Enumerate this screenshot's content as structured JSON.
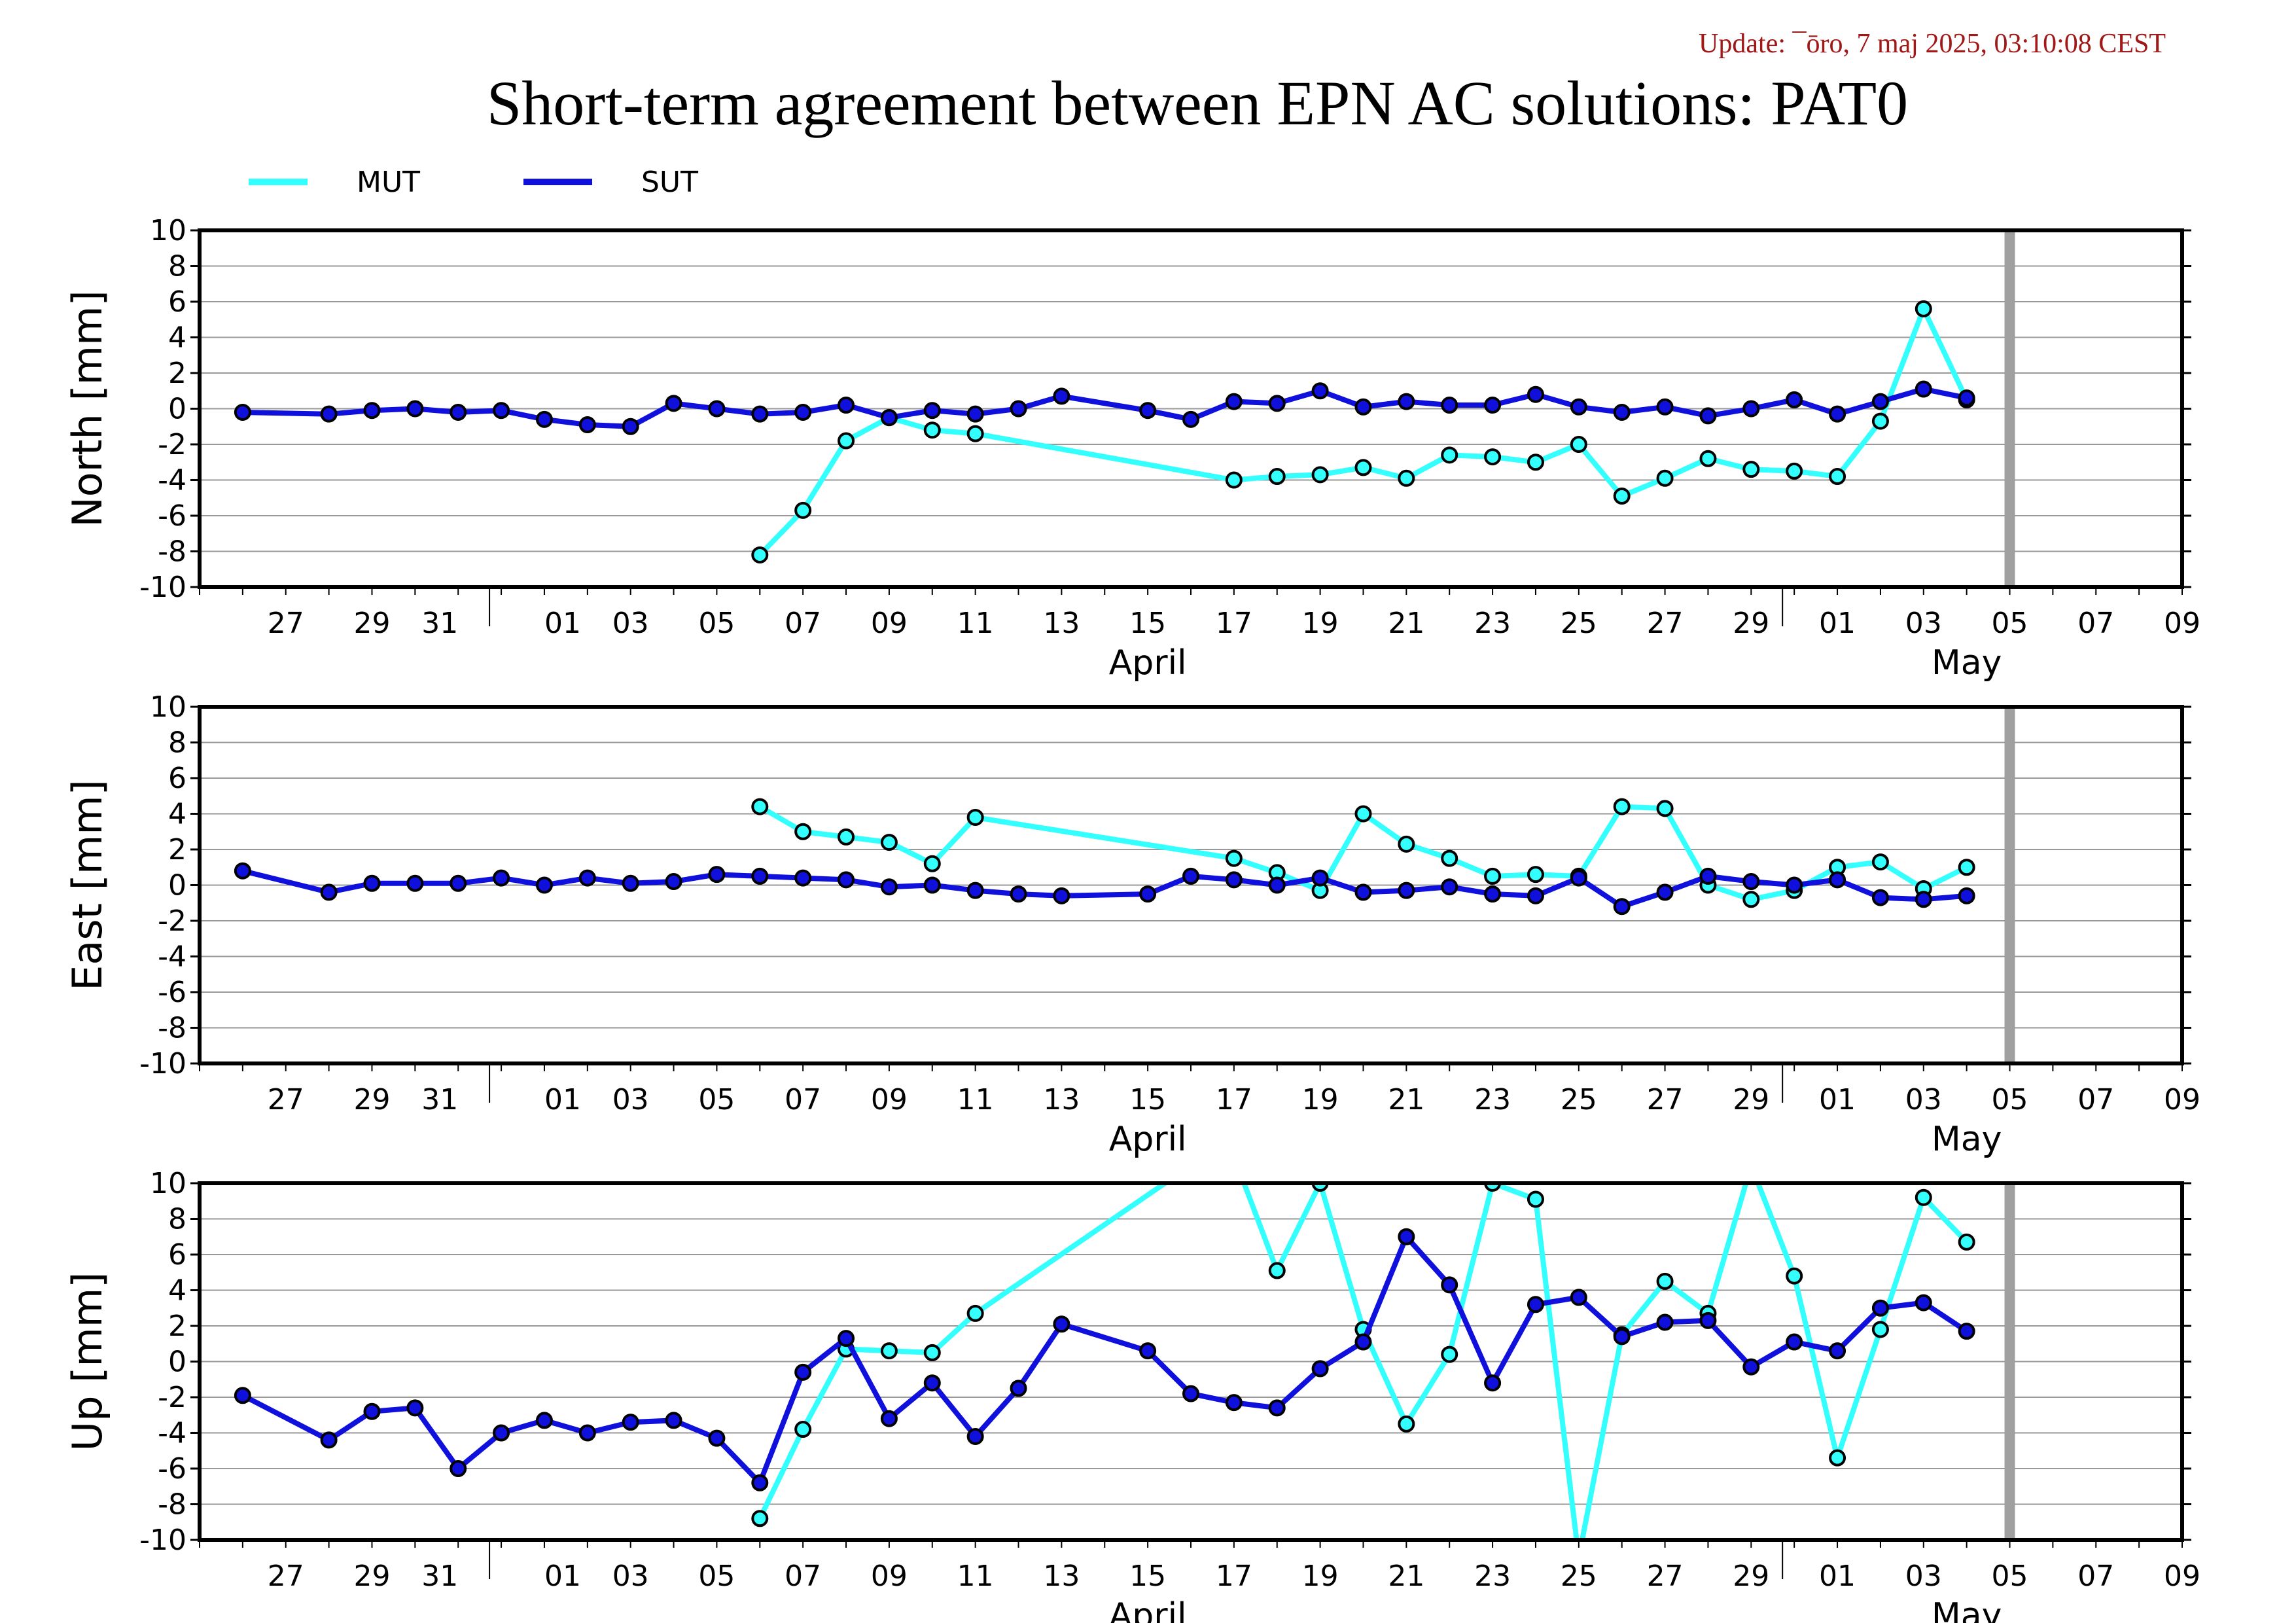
{
  "header": {
    "update": "Update: ¯ōro, 7 maj 2025, 03:10:08 CEST",
    "title": "Short-term agreement between EPN AC solutions: PAT0"
  },
  "legend": [
    {
      "name": "MUT",
      "color": "#33ffff"
    },
    {
      "name": "SUT",
      "color": "#1010dd"
    }
  ],
  "colors": {
    "MUT": "#33ffff",
    "SUT": "#1010dd",
    "grid": "#999999",
    "today_marker": "#a0a0a0"
  },
  "chart_data": [
    {
      "type": "line",
      "ylabel": "North [mm]",
      "ylim": [
        -10,
        10
      ],
      "yticks": [
        10,
        8,
        6,
        4,
        2,
        0,
        -2,
        -4,
        -6,
        -8,
        -10
      ],
      "xlim": [
        "2025-03-25",
        "2025-05-10"
      ],
      "x_tick_labels": [
        "27",
        "29",
        "31",
        "01",
        "03",
        "05",
        "07",
        "09",
        "11",
        "13",
        "15",
        "17",
        "19",
        "21",
        "23",
        "25",
        "27",
        "29",
        "01",
        "03",
        "05",
        "07",
        "09"
      ],
      "month_labels": [
        "April",
        "May"
      ],
      "grid": true,
      "today_marker": "2025-05-06",
      "series": [
        {
          "name": "MUT",
          "points": [
            [
              "2025-04-07",
              -8.2
            ],
            [
              "2025-04-08",
              -5.7
            ],
            [
              "2025-04-09",
              -1.8
            ],
            [
              "2025-04-10",
              -0.5
            ],
            [
              "2025-04-11",
              -1.2
            ],
            [
              "2025-04-12",
              -1.4
            ],
            [
              "2025-04-18",
              -4.0
            ],
            [
              "2025-04-19",
              -3.8
            ],
            [
              "2025-04-20",
              -3.7
            ],
            [
              "2025-04-21",
              -3.3
            ],
            [
              "2025-04-22",
              -3.9
            ],
            [
              "2025-04-23",
              -2.6
            ],
            [
              "2025-04-24",
              -2.7
            ],
            [
              "2025-04-25",
              -3.0
            ],
            [
              "2025-04-26",
              -2.0
            ],
            [
              "2025-04-27",
              -4.9
            ],
            [
              "2025-04-28",
              -3.9
            ],
            [
              "2025-04-29",
              -2.8
            ],
            [
              "2025-04-30",
              -3.4
            ],
            [
              "2025-05-01",
              -3.5
            ],
            [
              "2025-05-02",
              -3.8
            ],
            [
              "2025-05-03",
              -0.7
            ],
            [
              "2025-05-04",
              5.6
            ],
            [
              "2025-05-05",
              0.5
            ]
          ]
        },
        {
          "name": "SUT",
          "points": [
            [
              "2025-03-26",
              -0.2
            ],
            [
              "2025-03-28",
              -0.3
            ],
            [
              "2025-03-29",
              -0.1
            ],
            [
              "2025-03-30",
              0.0
            ],
            [
              "2025-03-31",
              -0.2
            ],
            [
              "2025-04-01",
              -0.1
            ],
            [
              "2025-04-02",
              -0.6
            ],
            [
              "2025-04-03",
              -0.9
            ],
            [
              "2025-04-04",
              -1.0
            ],
            [
              "2025-04-05",
              0.3
            ],
            [
              "2025-04-06",
              0.0
            ],
            [
              "2025-04-07",
              -0.3
            ],
            [
              "2025-04-08",
              -0.2
            ],
            [
              "2025-04-09",
              0.2
            ],
            [
              "2025-04-10",
              -0.5
            ],
            [
              "2025-04-11",
              -0.1
            ],
            [
              "2025-04-12",
              -0.3
            ],
            [
              "2025-04-13",
              0.0
            ],
            [
              "2025-04-14",
              0.7
            ],
            [
              "2025-04-16",
              -0.1
            ],
            [
              "2025-04-17",
              -0.6
            ],
            [
              "2025-04-18",
              0.4
            ],
            [
              "2025-04-19",
              0.3
            ],
            [
              "2025-04-20",
              1.0
            ],
            [
              "2025-04-21",
              0.1
            ],
            [
              "2025-04-22",
              0.4
            ],
            [
              "2025-04-23",
              0.2
            ],
            [
              "2025-04-24",
              0.2
            ],
            [
              "2025-04-25",
              0.8
            ],
            [
              "2025-04-26",
              0.1
            ],
            [
              "2025-04-27",
              -0.2
            ],
            [
              "2025-04-28",
              0.1
            ],
            [
              "2025-04-29",
              -0.4
            ],
            [
              "2025-04-30",
              0.0
            ],
            [
              "2025-05-01",
              0.5
            ],
            [
              "2025-05-02",
              -0.3
            ],
            [
              "2025-05-03",
              0.4
            ],
            [
              "2025-05-04",
              1.1
            ],
            [
              "2025-05-05",
              0.6
            ]
          ]
        }
      ]
    },
    {
      "type": "line",
      "ylabel": "East [mm]",
      "ylim": [
        -10,
        10
      ],
      "yticks": [
        10,
        8,
        6,
        4,
        2,
        0,
        -2,
        -4,
        -6,
        -8,
        -10
      ],
      "xlim": [
        "2025-03-25",
        "2025-05-10"
      ],
      "x_tick_labels": [
        "27",
        "29",
        "31",
        "01",
        "03",
        "05",
        "07",
        "09",
        "11",
        "13",
        "15",
        "17",
        "19",
        "21",
        "23",
        "25",
        "27",
        "29",
        "01",
        "03",
        "05",
        "07",
        "09"
      ],
      "month_labels": [
        "April",
        "May"
      ],
      "grid": true,
      "today_marker": "2025-05-06",
      "series": [
        {
          "name": "MUT",
          "points": [
            [
              "2025-04-07",
              4.4
            ],
            [
              "2025-04-08",
              3.0
            ],
            [
              "2025-04-09",
              2.7
            ],
            [
              "2025-04-10",
              2.4
            ],
            [
              "2025-04-11",
              1.2
            ],
            [
              "2025-04-12",
              3.8
            ],
            [
              "2025-04-18",
              1.5
            ],
            [
              "2025-04-19",
              0.7
            ],
            [
              "2025-04-20",
              -0.3
            ],
            [
              "2025-04-21",
              4.0
            ],
            [
              "2025-04-22",
              2.3
            ],
            [
              "2025-04-23",
              1.5
            ],
            [
              "2025-04-24",
              0.5
            ],
            [
              "2025-04-25",
              0.6
            ],
            [
              "2025-04-26",
              0.5
            ],
            [
              "2025-04-27",
              4.4
            ],
            [
              "2025-04-28",
              4.3
            ],
            [
              "2025-04-29",
              0.0
            ],
            [
              "2025-04-30",
              -0.8
            ],
            [
              "2025-05-01",
              -0.3
            ],
            [
              "2025-05-02",
              1.0
            ],
            [
              "2025-05-03",
              1.3
            ],
            [
              "2025-05-04",
              -0.2
            ],
            [
              "2025-05-05",
              1.0
            ]
          ]
        },
        {
          "name": "SUT",
          "points": [
            [
              "2025-03-26",
              0.8
            ],
            [
              "2025-03-28",
              -0.4
            ],
            [
              "2025-03-29",
              0.1
            ],
            [
              "2025-03-30",
              0.1
            ],
            [
              "2025-03-31",
              0.1
            ],
            [
              "2025-04-01",
              0.4
            ],
            [
              "2025-04-02",
              0.0
            ],
            [
              "2025-04-03",
              0.4
            ],
            [
              "2025-04-04",
              0.1
            ],
            [
              "2025-04-05",
              0.2
            ],
            [
              "2025-04-06",
              0.6
            ],
            [
              "2025-04-07",
              0.5
            ],
            [
              "2025-04-08",
              0.4
            ],
            [
              "2025-04-09",
              0.3
            ],
            [
              "2025-04-10",
              -0.1
            ],
            [
              "2025-04-11",
              0.0
            ],
            [
              "2025-04-12",
              -0.3
            ],
            [
              "2025-04-13",
              -0.5
            ],
            [
              "2025-04-14",
              -0.6
            ],
            [
              "2025-04-16",
              -0.5
            ],
            [
              "2025-04-17",
              0.5
            ],
            [
              "2025-04-18",
              0.3
            ],
            [
              "2025-04-19",
              0.0
            ],
            [
              "2025-04-20",
              0.4
            ],
            [
              "2025-04-21",
              -0.4
            ],
            [
              "2025-04-22",
              -0.3
            ],
            [
              "2025-04-23",
              -0.1
            ],
            [
              "2025-04-24",
              -0.5
            ],
            [
              "2025-04-25",
              -0.6
            ],
            [
              "2025-04-26",
              0.4
            ],
            [
              "2025-04-27",
              -1.2
            ],
            [
              "2025-04-28",
              -0.4
            ],
            [
              "2025-04-29",
              0.5
            ],
            [
              "2025-04-30",
              0.2
            ],
            [
              "2025-05-01",
              0.0
            ],
            [
              "2025-05-02",
              0.3
            ],
            [
              "2025-05-03",
              -0.7
            ],
            [
              "2025-05-04",
              -0.8
            ],
            [
              "2025-05-05",
              -0.6
            ]
          ]
        }
      ]
    },
    {
      "type": "line",
      "ylabel": "Up [mm]",
      "ylim": [
        -10,
        10
      ],
      "yticks": [
        10,
        8,
        6,
        4,
        2,
        0,
        -2,
        -4,
        -6,
        -8,
        -10
      ],
      "xlim": [
        "2025-03-25",
        "2025-05-10"
      ],
      "x_tick_labels": [
        "27",
        "29",
        "31",
        "01",
        "03",
        "05",
        "07",
        "09",
        "11",
        "13",
        "15",
        "17",
        "19",
        "21",
        "23",
        "25",
        "27",
        "29",
        "01",
        "03",
        "05",
        "07",
        "09"
      ],
      "month_labels": [
        "April",
        "May"
      ],
      "grid": true,
      "today_marker": "2025-05-06",
      "series": [
        {
          "name": "MUT",
          "points": [
            [
              "2025-04-07",
              -8.8
            ],
            [
              "2025-04-08",
              -3.8
            ],
            [
              "2025-04-09",
              0.7
            ],
            [
              "2025-04-10",
              0.6
            ],
            [
              "2025-04-11",
              0.5
            ],
            [
              "2025-04-12",
              2.7
            ],
            [
              "2025-04-17",
              11.0
            ],
            [
              "2025-04-18",
              11.5
            ],
            [
              "2025-04-19",
              5.1
            ],
            [
              "2025-04-20",
              10.0
            ],
            [
              "2025-04-21",
              1.8
            ],
            [
              "2025-04-22",
              -3.5
            ],
            [
              "2025-04-23",
              0.4
            ],
            [
              "2025-04-24",
              10.0
            ],
            [
              "2025-04-25",
              9.1
            ],
            [
              "2025-04-26",
              -11.0
            ],
            [
              "2025-04-27",
              1.5
            ],
            [
              "2025-04-28",
              4.5
            ],
            [
              "2025-04-29",
              2.7
            ],
            [
              "2025-04-30",
              11.0
            ],
            [
              "2025-05-01",
              4.8
            ],
            [
              "2025-05-02",
              -5.4
            ],
            [
              "2025-05-03",
              1.8
            ],
            [
              "2025-05-04",
              9.2
            ],
            [
              "2025-05-05",
              6.7
            ]
          ]
        },
        {
          "name": "SUT",
          "points": [
            [
              "2025-03-26",
              -1.9
            ],
            [
              "2025-03-28",
              -4.4
            ],
            [
              "2025-03-29",
              -2.8
            ],
            [
              "2025-03-30",
              -2.6
            ],
            [
              "2025-03-31",
              -6.0
            ],
            [
              "2025-04-01",
              -4.0
            ],
            [
              "2025-04-02",
              -3.3
            ],
            [
              "2025-04-03",
              -4.0
            ],
            [
              "2025-04-04",
              -3.4
            ],
            [
              "2025-04-05",
              -3.3
            ],
            [
              "2025-04-06",
              -4.3
            ],
            [
              "2025-04-07",
              -6.8
            ],
            [
              "2025-04-08",
              -0.6
            ],
            [
              "2025-04-09",
              1.3
            ],
            [
              "2025-04-10",
              -3.2
            ],
            [
              "2025-04-11",
              -1.2
            ],
            [
              "2025-04-12",
              -4.2
            ],
            [
              "2025-04-13",
              -1.5
            ],
            [
              "2025-04-14",
              2.1
            ],
            [
              "2025-04-16",
              0.6
            ],
            [
              "2025-04-17",
              -1.8
            ],
            [
              "2025-04-18",
              -2.3
            ],
            [
              "2025-04-19",
              -2.6
            ],
            [
              "2025-04-20",
              -0.4
            ],
            [
              "2025-04-21",
              1.1
            ],
            [
              "2025-04-22",
              7.0
            ],
            [
              "2025-04-23",
              4.3
            ],
            [
              "2025-04-24",
              -1.2
            ],
            [
              "2025-04-25",
              3.2
            ],
            [
              "2025-04-26",
              3.6
            ],
            [
              "2025-04-27",
              1.4
            ],
            [
              "2025-04-28",
              2.2
            ],
            [
              "2025-04-29",
              2.3
            ],
            [
              "2025-04-30",
              -0.3
            ],
            [
              "2025-05-01",
              1.1
            ],
            [
              "2025-05-02",
              0.6
            ],
            [
              "2025-05-03",
              3.0
            ],
            [
              "2025-05-04",
              3.3
            ],
            [
              "2025-05-05",
              1.7
            ]
          ]
        }
      ]
    }
  ]
}
